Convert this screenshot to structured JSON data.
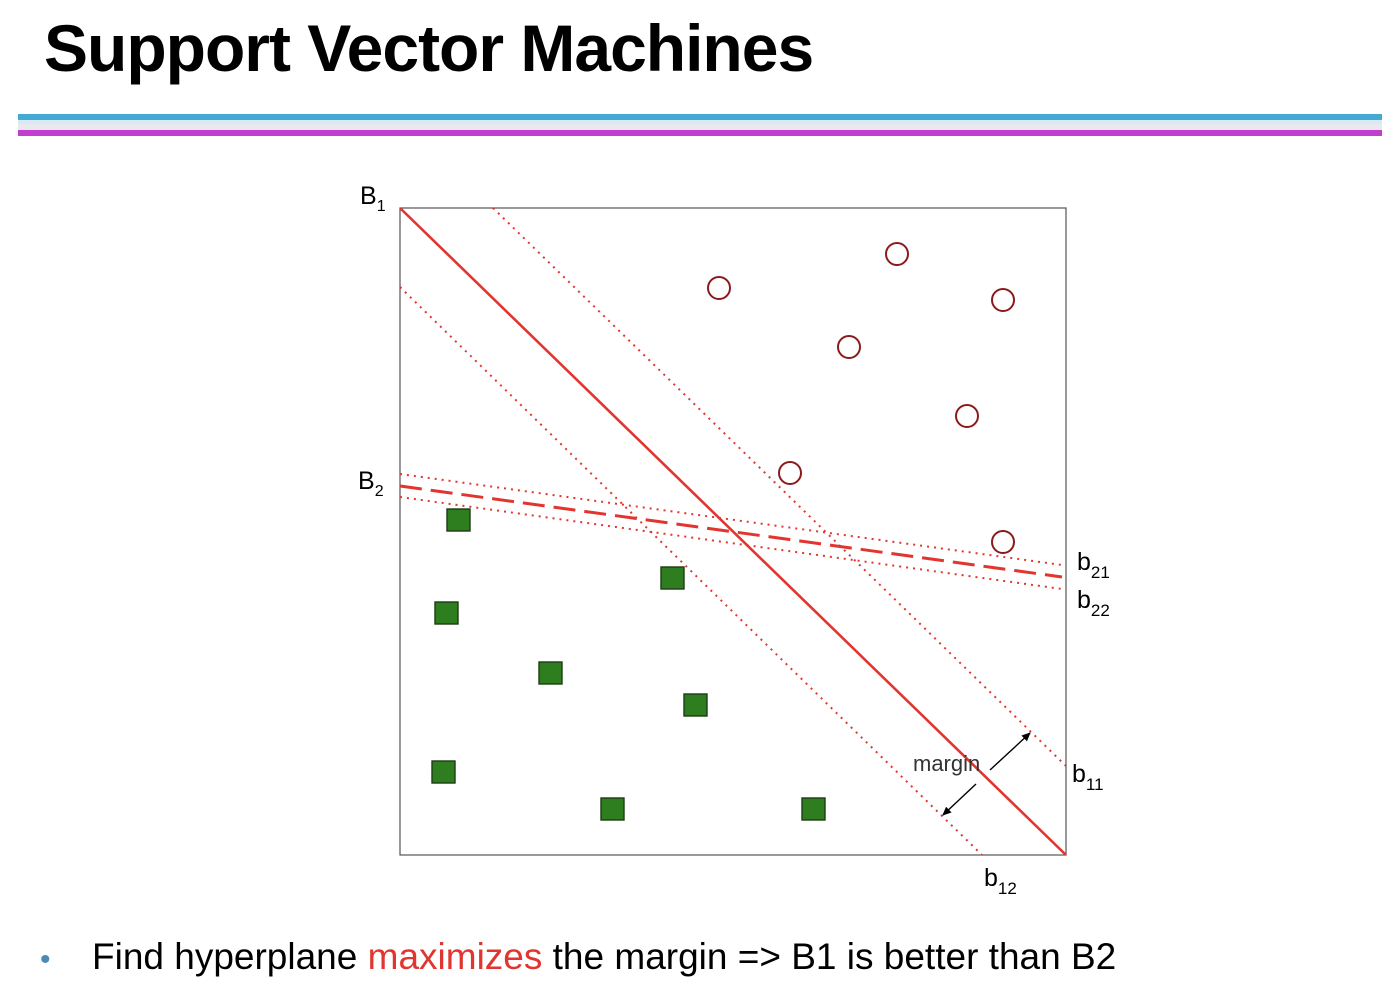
{
  "slide": {
    "title": "Support Vector Machines",
    "bullet": {
      "before": "Find hyperplane ",
      "highlight": "maximizes",
      "after": " the margin => B1 is better than B2"
    }
  },
  "diagram": {
    "labels": {
      "B1": {
        "main": "B",
        "sub": "1"
      },
      "B2": {
        "main": "B",
        "sub": "2"
      },
      "b11": {
        "main": "b",
        "sub": "11"
      },
      "b12": {
        "main": "b",
        "sub": "12"
      },
      "b21": {
        "main": "b",
        "sub": "21"
      },
      "b22": {
        "main": "b",
        "sub": "22"
      },
      "margin": "margin"
    },
    "colors": {
      "boundary": "#e2352f",
      "circle_stroke": "#8b1a1a",
      "square_fill": "#2e7d1f",
      "square_stroke": "#1c3d12"
    }
  }
}
